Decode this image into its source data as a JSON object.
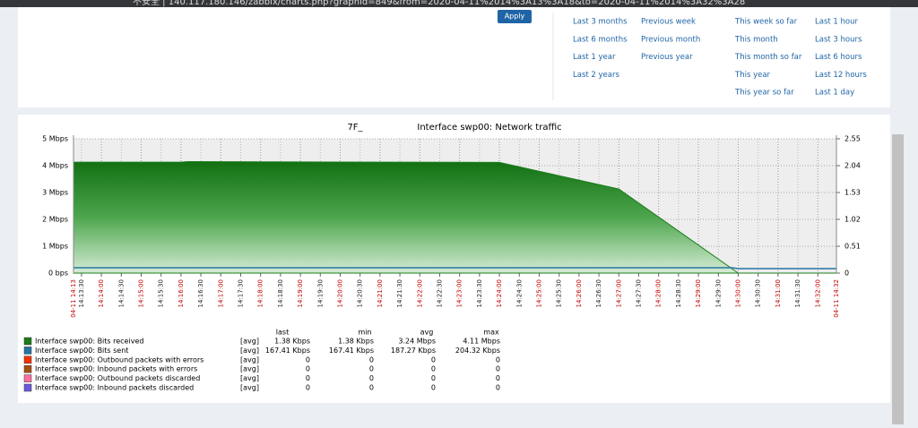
{
  "browser": {
    "url": "不安全 | 140.117.180.146/zabbix/charts.php?graphid=849&from=2020-04-11%2014%3A13%3A18&to=2020-04-11%2014%3A32%3A28"
  },
  "filter": {
    "apply": "Apply",
    "periods": [
      [
        "Last 3 months",
        "Last 6 months",
        "Last 1 year",
        "Last 2 years"
      ],
      [
        "Previous week",
        "Previous month",
        "Previous year"
      ],
      [
        "This week so far",
        "This month",
        "This month so far",
        "This year",
        "This year so far"
      ],
      [
        "Last 1 hour",
        "Last 3 hours",
        "Last 6 hours",
        "Last 12 hours",
        "Last 1 day"
      ]
    ]
  },
  "chart_data": {
    "type": "area",
    "title_host": "7F_",
    "title": "Interface swp00: Network traffic",
    "xlim": [
      "14:13:18",
      "14:32:28"
    ],
    "x_edge_labels": [
      "04-11 14:13",
      "04-11 14:32"
    ],
    "xticks": [
      "14:13:30",
      "14:14:00",
      "14:14:30",
      "14:15:00",
      "14:15:30",
      "14:16:00",
      "14:16:30",
      "14:17:00",
      "14:17:30",
      "14:18:00",
      "14:18:30",
      "14:19:00",
      "14:19:30",
      "14:20:00",
      "14:20:30",
      "14:21:00",
      "14:21:30",
      "14:22:00",
      "14:22:30",
      "14:23:00",
      "14:23:30",
      "14:24:00",
      "14:24:30",
      "14:25:00",
      "14:25:30",
      "14:26:00",
      "14:26:30",
      "14:27:00",
      "14:27:30",
      "14:28:00",
      "14:28:30",
      "14:29:00",
      "14:29:30",
      "14:30:00",
      "14:30:30",
      "14:31:00",
      "14:31:30",
      "14:32:00"
    ],
    "ylim": [
      0,
      5
    ],
    "yticks": [
      {
        "value": 0,
        "label": "0 bps"
      },
      {
        "value": 1,
        "label": "1 Mbps"
      },
      {
        "value": 2,
        "label": "2 Mbps"
      },
      {
        "value": 3,
        "label": "3 Mbps"
      },
      {
        "value": 4,
        "label": "4 Mbps"
      },
      {
        "value": 5,
        "label": "5 Mbps"
      }
    ],
    "y2lim": [
      0,
      2.55
    ],
    "y2ticks": [
      0,
      0.51,
      1.02,
      1.53,
      2.04,
      2.55
    ],
    "grid": true,
    "legend_header": [
      "last",
      "min",
      "avg",
      "max"
    ],
    "series": [
      {
        "name": "Interface swp00: Bits received",
        "color": "#1a7c1a",
        "func": "[avg]",
        "last": "1.38 Kbps",
        "min": "1.38 Kbps",
        "avg": "3.24 Mbps",
        "max": "4.11 Mbps",
        "x": [
          "14:13:18",
          "14:16:00",
          "14:16:10",
          "14:24:00",
          "14:27:00",
          "14:30:00",
          "14:32:28"
        ],
        "values": [
          4.13,
          4.13,
          4.15,
          4.12,
          3.13,
          0.0014,
          0.0014
        ]
      },
      {
        "name": "Interface swp00: Bits sent",
        "color": "#2774a4",
        "func": "[avg]",
        "last": "167.41 Kbps",
        "min": "167.41 Kbps",
        "avg": "187.27 Kbps",
        "max": "204.32 Kbps",
        "x": [
          "14:13:18",
          "14:29:50",
          "14:30:00",
          "14:32:28"
        ],
        "values": [
          0.2,
          0.2,
          0.167,
          0.167
        ]
      },
      {
        "name": "Interface swp00: Outbound packets with errors",
        "color": "#f63100",
        "func": "[avg]",
        "last": "0",
        "min": "0",
        "avg": "0",
        "max": "0"
      },
      {
        "name": "Interface swp00: Inbound packets with errors",
        "color": "#a54f10",
        "func": "[avg]",
        "last": "0",
        "min": "0",
        "avg": "0",
        "max": "0"
      },
      {
        "name": "Interface swp00: Outbound packets discarded",
        "color": "#fc6ea3",
        "func": "[avg]",
        "last": "0",
        "min": "0",
        "avg": "0",
        "max": "0"
      },
      {
        "name": "Interface swp00: Inbound packets discarded",
        "color": "#6c59dc",
        "func": "[avg]",
        "last": "0",
        "min": "0",
        "avg": "0",
        "max": "0"
      }
    ]
  }
}
